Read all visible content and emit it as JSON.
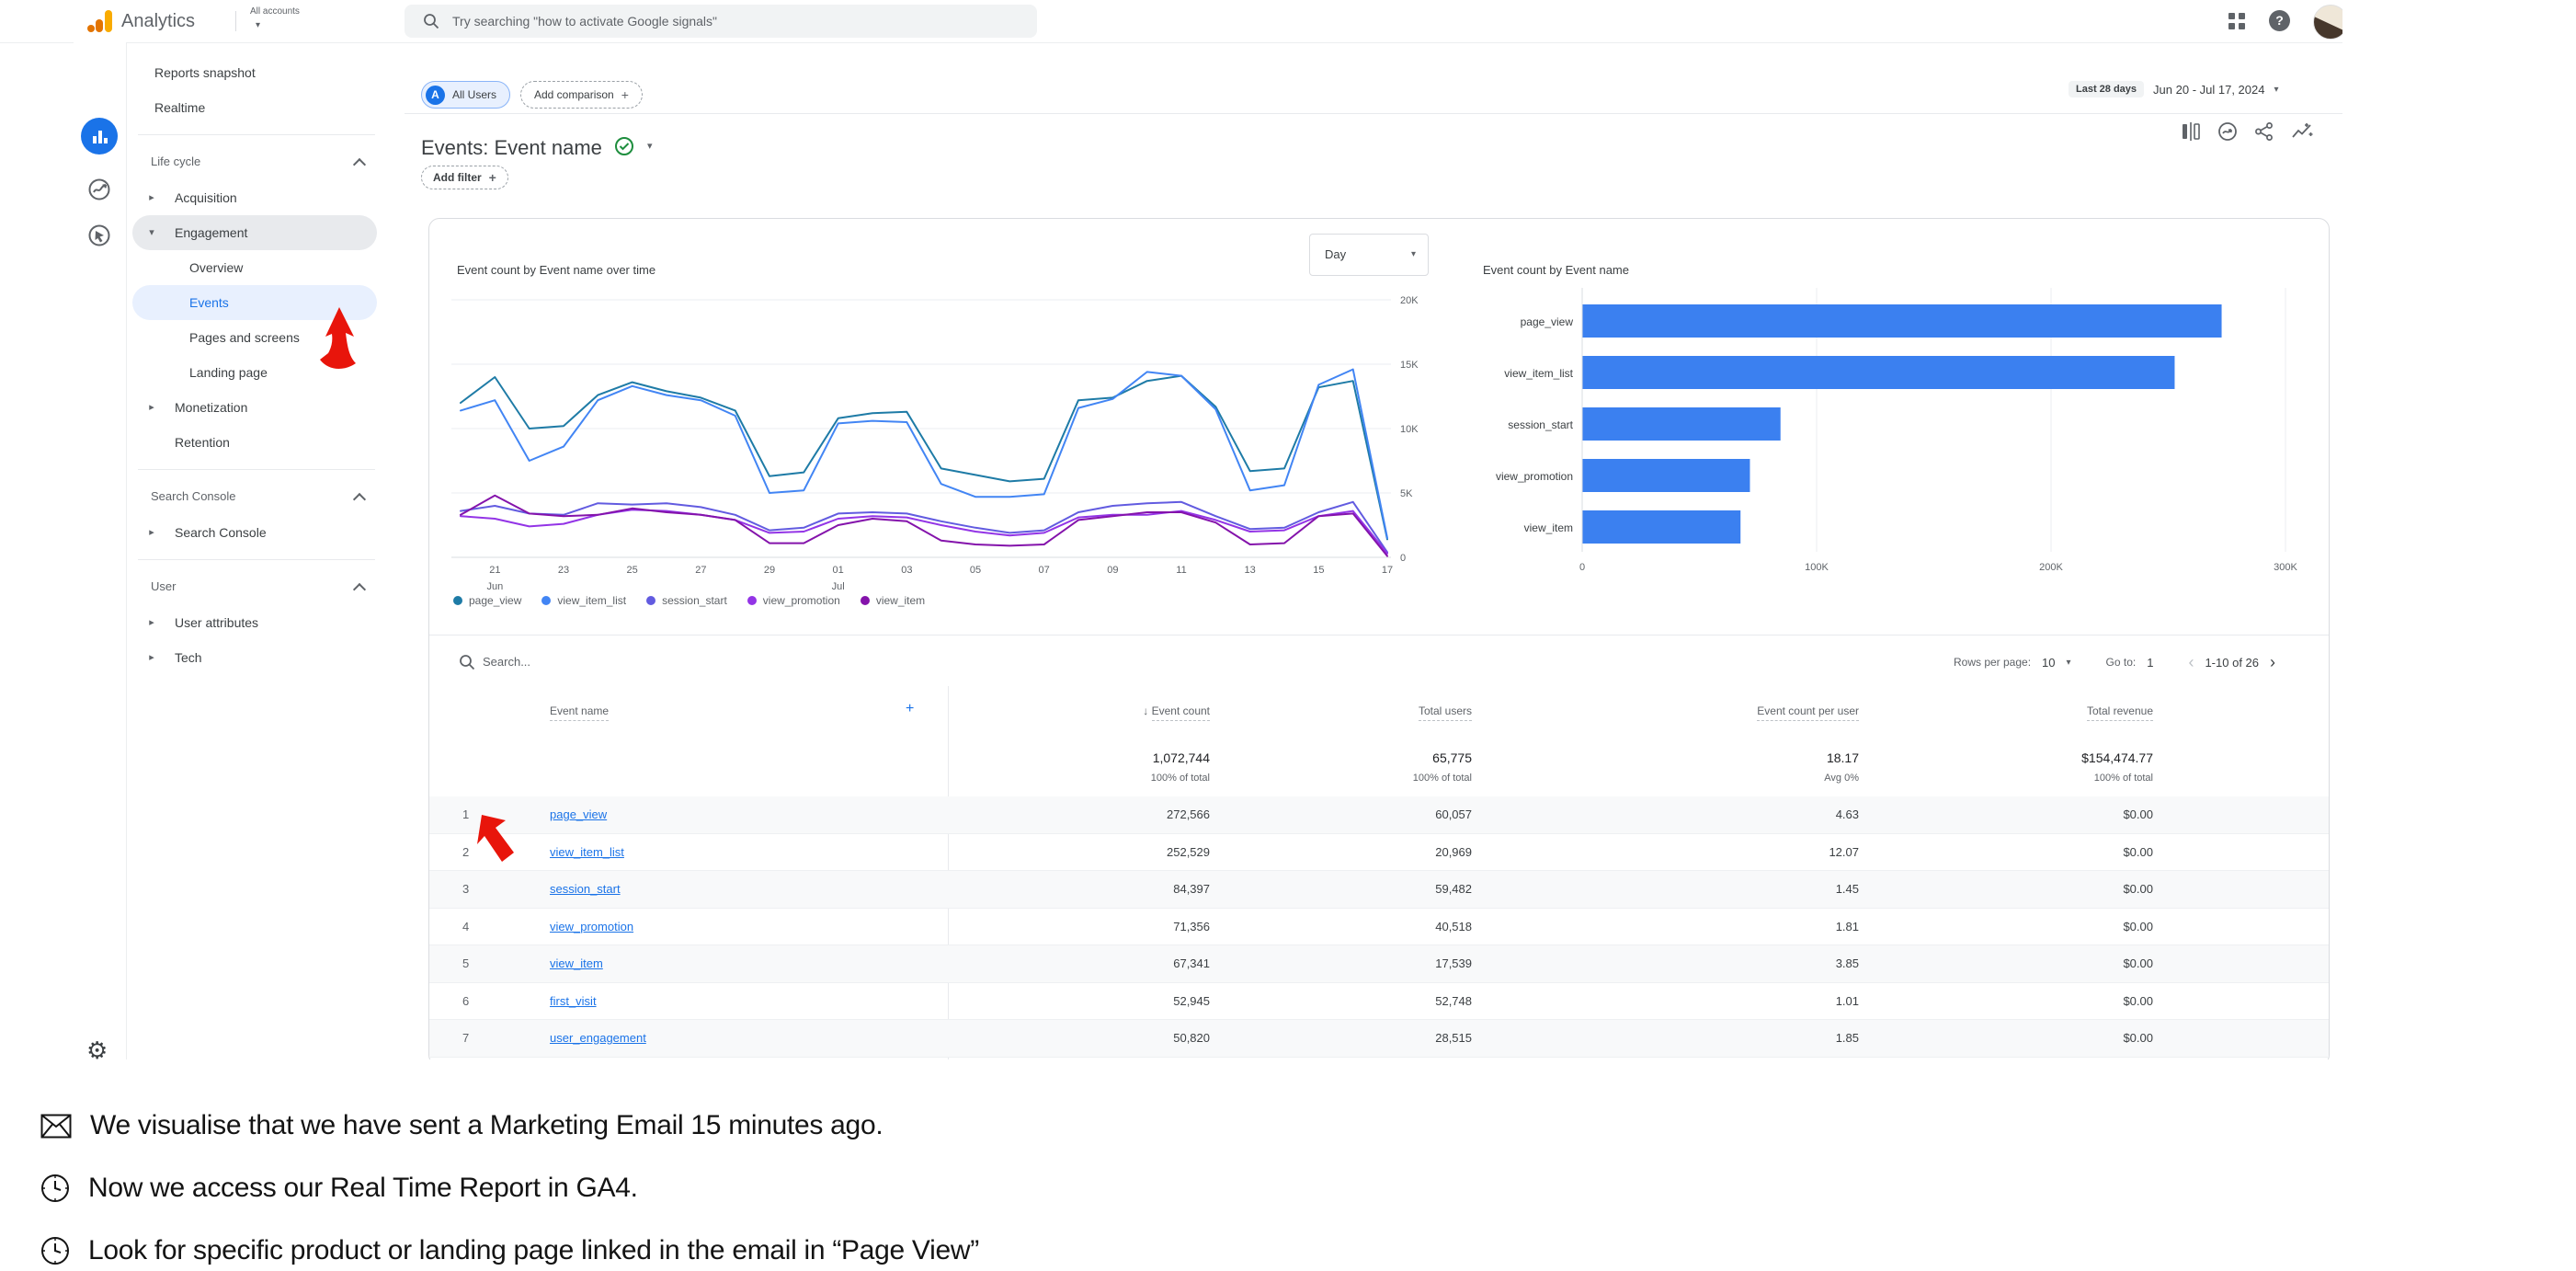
{
  "header": {
    "product": "Analytics",
    "accounts": "All accounts",
    "search_placeholder": "Try searching \"how to activate Google signals\"",
    "right_icons": [
      "apps-grid-icon",
      "help-icon",
      "user-avatar"
    ]
  },
  "rail_icons": [
    "home-icon",
    "reports-icon",
    "explore-icon",
    "advertising-icon",
    "settings-gear-icon"
  ],
  "sidebar": {
    "nav": [
      {
        "type": "item",
        "label": "Reports snapshot"
      },
      {
        "type": "item",
        "label": "Realtime"
      },
      {
        "type": "divider"
      },
      {
        "type": "section",
        "label": "Life cycle"
      },
      {
        "type": "parent",
        "label": "Acquisition",
        "caret": "right"
      },
      {
        "type": "parent",
        "label": "Engagement",
        "caret": "down",
        "highlight": true
      },
      {
        "type": "child",
        "label": "Overview"
      },
      {
        "type": "child",
        "label": "Events",
        "selected": true
      },
      {
        "type": "child",
        "label": "Pages and screens"
      },
      {
        "type": "child",
        "label": "Landing page"
      },
      {
        "type": "parent",
        "label": "Monetization",
        "caret": "right"
      },
      {
        "type": "item-sub",
        "label": "Retention"
      },
      {
        "type": "divider"
      },
      {
        "type": "section",
        "label": "Search Console"
      },
      {
        "type": "parent",
        "label": "Search Console",
        "caret": "right"
      },
      {
        "type": "divider"
      },
      {
        "type": "section",
        "label": "User"
      },
      {
        "type": "parent",
        "label": "User attributes",
        "caret": "right"
      },
      {
        "type": "parent",
        "label": "Tech",
        "caret": "right"
      }
    ]
  },
  "report_header": {
    "all_users": "All Users",
    "all_users_badge": "A",
    "add_comparison": "Add comparison",
    "title": "Events: Event name",
    "add_filter": "Add filter",
    "date_badge": "Last 28 days",
    "date_range": "Jun 20 - Jul 17, 2024",
    "action_icons": [
      "edit-comparisons-icon",
      "trend-circle-icon",
      "share-icon",
      "insights-icon"
    ]
  },
  "chart_data": [
    {
      "type": "line",
      "title": "Event count by Event name over time",
      "granularity": "Day",
      "ylim": [
        0,
        20000
      ],
      "y_ticks": [
        "0",
        "5K",
        "10K",
        "15K",
        "20K"
      ],
      "x_range": "Jun 20 - Jul 17, 2024 (28 days)",
      "x_ticks": [
        {
          "i": 1,
          "label": "21",
          "sub": "Jun"
        },
        {
          "i": 3,
          "label": "23"
        },
        {
          "i": 5,
          "label": "25"
        },
        {
          "i": 7,
          "label": "27"
        },
        {
          "i": 9,
          "label": "29"
        },
        {
          "i": 11,
          "label": "01",
          "sub": "Jul"
        },
        {
          "i": 13,
          "label": "03"
        },
        {
          "i": 15,
          "label": "05"
        },
        {
          "i": 17,
          "label": "07"
        },
        {
          "i": 19,
          "label": "09"
        },
        {
          "i": 21,
          "label": "11"
        },
        {
          "i": 23,
          "label": "13"
        },
        {
          "i": 25,
          "label": "15"
        },
        {
          "i": 27,
          "label": "17"
        }
      ],
      "series": [
        {
          "name": "page_view",
          "color": "#1e7ba6",
          "values": [
            12000,
            14000,
            10000,
            10200,
            12600,
            13600,
            12900,
            12400,
            11400,
            6300,
            6600,
            10800,
            11200,
            11300,
            6900,
            6400,
            5900,
            6100,
            12200,
            12400,
            13700,
            14100,
            11700,
            6700,
            6900,
            13200,
            13700,
            1400
          ]
        },
        {
          "name": "view_item_list",
          "color": "#4285f4",
          "values": [
            11400,
            12200,
            7500,
            8600,
            12200,
            13300,
            12600,
            12200,
            11000,
            5000,
            5200,
            10400,
            10600,
            10500,
            5700,
            4700,
            4700,
            4900,
            11600,
            12300,
            14400,
            14100,
            11500,
            5200,
            5600,
            13400,
            14600,
            1500
          ]
        },
        {
          "name": "session_start",
          "color": "#625be0",
          "values": [
            3600,
            4000,
            3400,
            3300,
            4200,
            4100,
            4200,
            3900,
            3300,
            2100,
            2300,
            3400,
            3500,
            3400,
            2800,
            2300,
            1900,
            2100,
            3500,
            4000,
            4200,
            4300,
            3200,
            2200,
            2300,
            3500,
            4300,
            400
          ]
        },
        {
          "name": "view_promotion",
          "color": "#9334e6",
          "values": [
            3200,
            3000,
            2400,
            2600,
            3300,
            3700,
            3600,
            3300,
            2900,
            1900,
            2000,
            3000,
            3200,
            3100,
            2500,
            2000,
            1700,
            1900,
            3100,
            3300,
            3300,
            3600,
            2900,
            2000,
            2100,
            3200,
            3600,
            300
          ]
        },
        {
          "name": "view_item",
          "color": "#8413ab",
          "values": [
            3300,
            4800,
            3400,
            3200,
            3300,
            3800,
            3500,
            3300,
            2900,
            1100,
            1100,
            2500,
            3000,
            2800,
            1300,
            1000,
            900,
            1000,
            2900,
            3200,
            3500,
            3500,
            2700,
            1000,
            1100,
            3200,
            3400,
            100
          ]
        }
      ],
      "legend_position": "bottom"
    },
    {
      "type": "bar",
      "title": "Event count by Event name",
      "orientation": "horizontal",
      "categories": [
        "page_view",
        "view_item_list",
        "session_start",
        "view_promotion",
        "view_item"
      ],
      "values": [
        272566,
        252529,
        84397,
        71356,
        67341
      ],
      "bar_color": "#3b80f0",
      "xlim": [
        0,
        300000
      ],
      "x_ticks": [
        "0",
        "100K",
        "200K",
        "300K"
      ]
    }
  ],
  "table": {
    "search_placeholder": "Search...",
    "pagination": {
      "rows_per_page_label": "Rows per page:",
      "rows_per_page": "10",
      "goto_label": "Go to:",
      "goto_value": "1",
      "range": "1-10 of 26"
    },
    "sort_indicator": "↓",
    "headers": [
      "Event name",
      "Event count",
      "Total users",
      "Event count per user",
      "Total revenue"
    ],
    "totals": {
      "event_count": "1,072,744",
      "event_count_sub": "100% of total",
      "total_users": "65,775",
      "total_users_sub": "100% of total",
      "per_user": "18.17",
      "per_user_sub": "Avg 0%",
      "revenue": "$154,474.77",
      "revenue_sub": "100% of total"
    },
    "rows": [
      {
        "n": "1",
        "name": "page_view",
        "event_count": "272,566",
        "total_users": "60,057",
        "per_user": "4.63",
        "revenue": "$0.00"
      },
      {
        "n": "2",
        "name": "view_item_list",
        "event_count": "252,529",
        "total_users": "20,969",
        "per_user": "12.07",
        "revenue": "$0.00"
      },
      {
        "n": "3",
        "name": "session_start",
        "event_count": "84,397",
        "total_users": "59,482",
        "per_user": "1.45",
        "revenue": "$0.00"
      },
      {
        "n": "4",
        "name": "view_promotion",
        "event_count": "71,356",
        "total_users": "40,518",
        "per_user": "1.81",
        "revenue": "$0.00"
      },
      {
        "n": "5",
        "name": "view_item",
        "event_count": "67,341",
        "total_users": "17,539",
        "per_user": "3.85",
        "revenue": "$0.00"
      },
      {
        "n": "6",
        "name": "first_visit",
        "event_count": "52,945",
        "total_users": "52,748",
        "per_user": "1.01",
        "revenue": "$0.00"
      },
      {
        "n": "7",
        "name": "user_engagement",
        "event_count": "50,820",
        "total_users": "28,515",
        "per_user": "1.85",
        "revenue": "$0.00"
      }
    ]
  },
  "drawn_annotations": [
    {
      "name": "red-arrow-sidebar",
      "color": "#e8150b"
    },
    {
      "name": "red-arrow-table",
      "color": "#e8150b"
    }
  ],
  "notes": [
    {
      "icon": "envelope-icon",
      "text": "We visualise that we have sent a Marketing Email 15 minutes ago."
    },
    {
      "icon": "clock-icon",
      "text": "Now we access our Real Time Report in GA4."
    },
    {
      "icon": "clock-icon",
      "text": "Look for specific product or landing page linked in the email in “Page View”"
    }
  ],
  "colors": {
    "accent": "#1a73e8",
    "bar_blue": "#3b80f0",
    "annotation_red": "#e8150b",
    "selected_bg": "#e8f0fe",
    "highlight_bg": "#e8eaed",
    "logo_orange": "#f9ab00",
    "logo_dark_orange": "#e37400",
    "check_green": "#1e8e3e"
  }
}
